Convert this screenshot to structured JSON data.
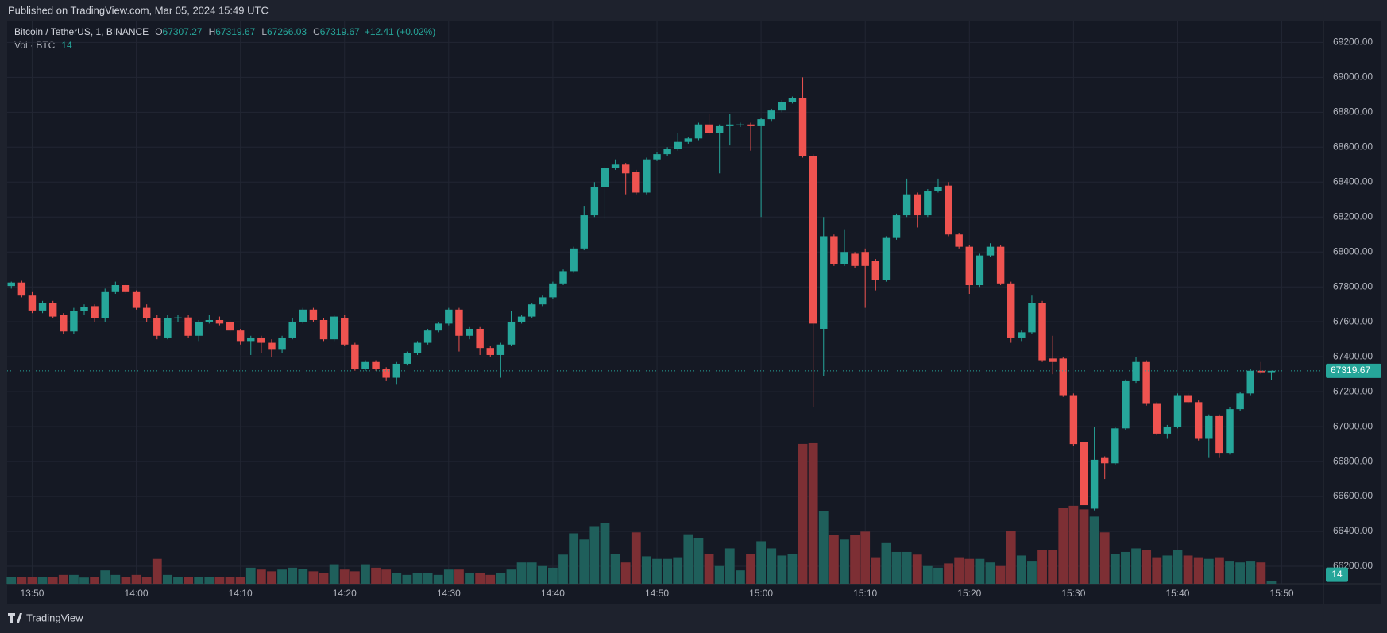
{
  "header": {
    "published": "Published on TradingView.com, Mar 05, 2024 15:49 UTC"
  },
  "footer": {
    "brand": "TradingView"
  },
  "chart_data": {
    "type": "candlestick",
    "symbol": "Bitcoin / TetherUS, 1, BINANCE",
    "ohlc_letters": [
      "O",
      "H",
      "L",
      "C"
    ],
    "change": "+12.41 (+0.02%)",
    "volume_label": "Vol · BTC",
    "open": [
      67805,
      67825,
      67750,
      67665,
      67710,
      67640,
      67545,
      67660,
      67690,
      67620,
      67770,
      67810,
      67770,
      67680,
      67620,
      67510,
      67620,
      67625,
      67520,
      67600,
      67610,
      67600,
      67550,
      67490,
      67510,
      67480,
      67440,
      67510,
      67600,
      67670,
      67610,
      67500,
      67620,
      67470,
      67330,
      67370,
      67330,
      67280,
      67360,
      67420,
      67480,
      67550,
      67590,
      67670,
      67520,
      67560,
      67450,
      67410,
      67470,
      67600,
      67630,
      67700,
      67740,
      67820,
      67890,
      68020,
      68210,
      68370,
      68480,
      68500,
      68460,
      68340,
      68530,
      68560,
      68590,
      68630,
      68650,
      68730,
      68680,
      68720,
      68725,
      68730,
      68720,
      68760,
      68810,
      68860,
      68880,
      68550,
      67560,
      68090,
      67930,
      67990,
      68000,
      67950,
      67840,
      68080,
      68210,
      68330,
      68210,
      68350,
      68380,
      68100,
      68030,
      67810,
      67980,
      68030,
      67820,
      67510,
      67540,
      67710,
      67390,
      67390,
      67180,
      66910,
      66530,
      66820,
      66790,
      66990,
      67260,
      67370,
      67130,
      66960,
      67000,
      67180,
      67140,
      66930,
      67060,
      66850,
      67100,
      67190,
      67320,
      67307.27
    ],
    "high": [
      67830,
      67835,
      67770,
      67720,
      67720,
      67650,
      67680,
      67700,
      67700,
      67790,
      67830,
      67820,
      67780,
      67700,
      67640,
      67640,
      67640,
      67640,
      67610,
      67640,
      67630,
      67610,
      67560,
      67520,
      67520,
      67500,
      67520,
      67620,
      67680,
      67680,
      67620,
      67640,
      67640,
      67480,
      67380,
      67380,
      67340,
      67370,
      67430,
      67490,
      67560,
      67600,
      67680,
      67680,
      67570,
      67570,
      67460,
      67480,
      67660,
      67640,
      67710,
      67750,
      67830,
      67900,
      68030,
      68260,
      68400,
      68490,
      68530,
      68510,
      68470,
      68540,
      68570,
      68600,
      68680,
      68660,
      68740,
      68790,
      68730,
      68790,
      68740,
      68740,
      68770,
      68820,
      68870,
      68890,
      69000,
      68560,
      68200,
      68100,
      68130,
      68000,
      68020,
      67960,
      68090,
      68220,
      68420,
      68340,
      68360,
      68420,
      68400,
      68110,
      68040,
      67990,
      68050,
      68040,
      67830,
      67550,
      67750,
      67720,
      67520,
      67400,
      67190,
      66920,
      67000,
      66830,
      67000,
      67270,
      67400,
      67380,
      67140,
      67010,
      67190,
      67190,
      67150,
      67070,
      67070,
      67110,
      67200,
      67330,
      67370,
      67319.67
    ],
    "low": [
      67790,
      67740,
      67650,
      67650,
      67620,
      67530,
      67530,
      67640,
      67600,
      67600,
      67760,
      67760,
      67670,
      67600,
      67500,
      67500,
      67600,
      67510,
      67490,
      67590,
      67580,
      67540,
      67470,
      67410,
      67420,
      67400,
      67420,
      67500,
      67590,
      67600,
      67490,
      67490,
      67460,
      67320,
      67320,
      67320,
      67260,
      67240,
      67350,
      67410,
      67470,
      67540,
      67580,
      67430,
      67500,
      67410,
      67400,
      67280,
      67460,
      67590,
      67620,
      67690,
      67730,
      67810,
      67880,
      68010,
      68200,
      68190,
      68470,
      68330,
      68330,
      68330,
      68520,
      68550,
      68580,
      68620,
      68640,
      68670,
      68450,
      68610,
      68715,
      68580,
      68200,
      68750,
      68800,
      68850,
      68540,
      67110,
      67290,
      67920,
      67920,
      67910,
      67680,
      67780,
      67830,
      68070,
      68200,
      68140,
      68200,
      68340,
      68090,
      68020,
      67760,
      67800,
      67970,
      67810,
      67480,
      67490,
      67530,
      67370,
      67300,
      67170,
      66890,
      66380,
      66520,
      66700,
      66780,
      66980,
      67250,
      67120,
      66950,
      66930,
      66990,
      67130,
      66920,
      66820,
      66820,
      66840,
      67090,
      67180,
      67300,
      67266.03
    ],
    "close": [
      67825,
      67750,
      67665,
      67710,
      67630,
      67545,
      67660,
      67685,
      67620,
      67770,
      67810,
      67770,
      67680,
      67620,
      67520,
      67620,
      67625,
      67520,
      67600,
      67610,
      67590,
      67550,
      67490,
      67510,
      67480,
      67440,
      67510,
      67600,
      67670,
      67610,
      67500,
      67630,
      67470,
      67330,
      67370,
      67330,
      67280,
      67360,
      67420,
      67480,
      67550,
      67590,
      67670,
      67520,
      67560,
      67450,
      67410,
      67470,
      67600,
      67630,
      67700,
      67740,
      67820,
      67890,
      68020,
      68210,
      68370,
      68480,
      68500,
      68450,
      68340,
      68530,
      68560,
      68590,
      68630,
      68650,
      68730,
      68680,
      68720,
      68730,
      68730,
      68720,
      68760,
      68810,
      68860,
      68880,
      68550,
      67590,
      68090,
      67930,
      68000,
      67920,
      67920,
      67840,
      68080,
      68210,
      68330,
      68210,
      68350,
      68370,
      68100,
      68030,
      67810,
      67980,
      68030,
      67820,
      67510,
      67540,
      67710,
      67380,
      67370,
      67180,
      66900,
      66550,
      66810,
      66790,
      66990,
      67260,
      67370,
      67130,
      66960,
      67000,
      67180,
      67140,
      66930,
      67060,
      66850,
      67100,
      67190,
      67320,
      67307,
      67319.67
    ],
    "volume": [
      38,
      38,
      38,
      38,
      38,
      47,
      47,
      33,
      38,
      71,
      47,
      38,
      47,
      38,
      132,
      47,
      38,
      38,
      38,
      38,
      38,
      38,
      38,
      85,
      75,
      66,
      75,
      85,
      80,
      66,
      56,
      103,
      75,
      66,
      103,
      85,
      75,
      56,
      47,
      56,
      56,
      47,
      75,
      75,
      56,
      56,
      47,
      56,
      75,
      113,
      113,
      94,
      85,
      155,
      268,
      235,
      306,
      324,
      160,
      113,
      273,
      146,
      132,
      132,
      141,
      263,
      244,
      160,
      94,
      188,
      71,
      160,
      226,
      188,
      150,
      160,
      743,
      747,
      385,
      259,
      235,
      259,
      277,
      141,
      216,
      169,
      169,
      155,
      94,
      85,
      108,
      141,
      132,
      132,
      113,
      94,
      282,
      150,
      122,
      179,
      179,
      404,
      414,
      395,
      357,
      273,
      160,
      169,
      188,
      179,
      141,
      150,
      179,
      150,
      141,
      132,
      141,
      122,
      113,
      122,
      113,
      14
    ],
    "up_color": "#26a69a",
    "down_color": "#ef5350",
    "volume_up_color": "#1f5f5b",
    "volume_down_color": "#7d2f34",
    "xlim": [
      -0.4,
      126
    ],
    "xticks": [
      {
        "value": 2,
        "label": "13:50"
      },
      {
        "value": 12,
        "label": "14:00"
      },
      {
        "value": 22,
        "label": "14:10"
      },
      {
        "value": 32,
        "label": "14:20"
      },
      {
        "value": 42,
        "label": "14:30"
      },
      {
        "value": 52,
        "label": "14:40"
      },
      {
        "value": 62,
        "label": "14:50"
      },
      {
        "value": 72,
        "label": "15:00"
      },
      {
        "value": 82,
        "label": "15:10"
      },
      {
        "value": 92,
        "label": "15:20"
      },
      {
        "value": 102,
        "label": "15:30"
      },
      {
        "value": 112,
        "label": "15:40"
      },
      {
        "value": 122,
        "label": "15:50"
      }
    ],
    "ylim": [
      66100,
      69320
    ],
    "yticks": [
      {
        "value": 66200,
        "label": "66200.00"
      },
      {
        "value": 66400,
        "label": "66400.00"
      },
      {
        "value": 66600,
        "label": "66600.00"
      },
      {
        "value": 66800,
        "label": "66800.00"
      },
      {
        "value": 67000,
        "label": "67000.00"
      },
      {
        "value": 67200,
        "label": "67200.00"
      },
      {
        "value": 67400,
        "label": "67400.00"
      },
      {
        "value": 67600,
        "label": "67600.00"
      },
      {
        "value": 67800,
        "label": "67800.00"
      },
      {
        "value": 68000,
        "label": "68000.00"
      },
      {
        "value": 68200,
        "label": "68200.00"
      },
      {
        "value": 68400,
        "label": "68400.00"
      },
      {
        "value": 68600,
        "label": "68600.00"
      },
      {
        "value": 68800,
        "label": "68800.00"
      },
      {
        "value": 69000,
        "label": "69000.00"
      },
      {
        "value": 69200,
        "label": "69200.00"
      }
    ],
    "grid": true
  }
}
